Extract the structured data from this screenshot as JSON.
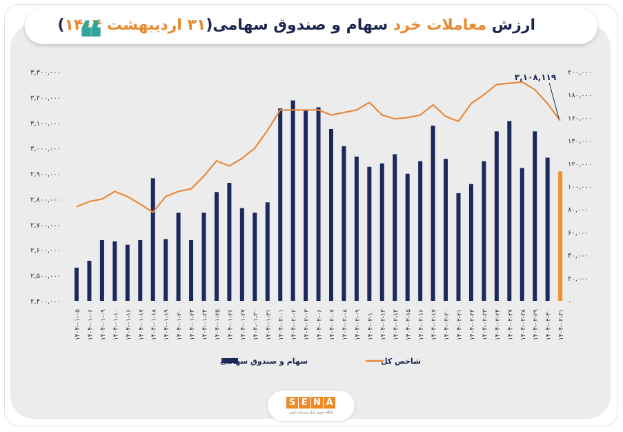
{
  "title": {
    "part1": "ارزش ",
    "part2": "معاملات خرد",
    "part3": " سهام و صندوق سهامی(",
    "part4": "۳۱ اردیبهشت ۱۴۰۴",
    "part5": ")",
    "quote_glyph": "❝"
  },
  "logo": {
    "letters": [
      "S",
      "E",
      "N",
      "A"
    ],
    "subtitle": "پایگاه خبری بازار سرمایه ایران"
  },
  "colors": {
    "bar": "#1b2a5c",
    "bar_last": "#f0922b",
    "line": "#e8893a",
    "navy": "#1b2550",
    "accent": "#f08a24",
    "quote": "#33a59a"
  },
  "chart_data": {
    "type": "bar+line",
    "categories": [
      "۱۴۰۴-۰۱-۰۵",
      "۱۴۰۴-۰۱-۰۶",
      "۱۴۰۴-۰۱-۰۹",
      "۱۴۰۴-۰۱-۱۰",
      "۱۴۰۴-۰۱-۱۶",
      "۱۴۰۴-۰۱-۱۷",
      "۱۴۰۴-۰۱-۱۸",
      "۱۴۰۴-۰۱-۱۹",
      "۱۴۰۴-۰۱-۲۰",
      "۱۴۰۴-۰۱-۲۳",
      "۱۴۰۴-۰۱-۲۴",
      "۱۴۰۴-۰۱-۲۵",
      "۱۴۰۴-۰۱-۲۶",
      "۱۴۰۴-۰۱-۲۷",
      "۱۴۰۴-۰۱-۳۰",
      "۱۴۰۴-۰۱-۳۱",
      "۱۴۰۴-۰۲-۰۱",
      "۱۴۰۴-۰۲-۰۲",
      "۱۴۰۴-۰۲-۰۳",
      "۱۴۰۴-۰۲-۰۶",
      "۱۴۰۴-۰۲-۰۷",
      "۱۴۰۴-۰۲-۰۸",
      "۱۴۰۴-۰۲-۰۹",
      "۱۴۰۴-۰۲-۱۰",
      "۱۴۰۴-۰۲-۱۳",
      "۱۴۰۴-۰۲-۱۴",
      "۱۴۰۴-۰۲-۱۵",
      "۱۴۰۴-۰۲-۱۶",
      "۱۴۰۴-۰۲-۱۷",
      "۱۴۰۴-۰۲-۲۰",
      "۱۴۰۴-۰۲-۲۱",
      "۱۴۰۴-۰۲-۲۲",
      "۱۴۰۴-۰۲-۲۳",
      "۱۴۰۴-۰۲-۲۴",
      "۱۴۰۴-۰۲-۲۷",
      "۱۴۰۴-۰۲-۲۸",
      "۱۴۰۴-۰۲-۲۹",
      "۱۴۰۴-۰۲-۳۰",
      "۱۴۰۴-۰۲-۳۱"
    ],
    "series": [
      {
        "name": "سهام و صندوق سهامی",
        "type": "bar",
        "axis": "right",
        "values": [
          29000,
          35000,
          53000,
          52000,
          49000,
          53000,
          107000,
          54000,
          77000,
          53000,
          77000,
          95000,
          103000,
          81000,
          77000,
          86000,
          168000,
          175000,
          166000,
          169000,
          150000,
          135000,
          126000,
          117000,
          120000,
          128000,
          111000,
          122000,
          153000,
          124000,
          94000,
          102000,
          122000,
          148000,
          157000,
          116000,
          148000,
          125000,
          113000
        ]
      },
      {
        "name": "شاخص کل",
        "type": "line",
        "axis": "left",
        "values": [
          2.77,
          2.79,
          2.8,
          2.83,
          2.81,
          2.78,
          2.748,
          2.81,
          2.83,
          2.84,
          2.89,
          2.95,
          2.93,
          2.96,
          3.0,
          3.07,
          3.15,
          3.15,
          3.15,
          3.15,
          3.13,
          3.14,
          3.15,
          3.18,
          3.13,
          3.115,
          3.12,
          3.13,
          3.17,
          3.125,
          3.105,
          3.175,
          3.21,
          3.25,
          3.255,
          3.26,
          3.23,
          3.175,
          3.1081
        ]
      }
    ],
    "last_label": "۳,۱۰۸,۱۱۹",
    "left_axis": {
      "ylim": [
        2400000,
        3300000
      ],
      "ticks": [
        "۳,۳۰۰,۰۰۰",
        "۳,۲۰۰,۰۰۰",
        "۳,۱۰۰,۰۰۰",
        "۳,۰۰۰,۰۰۰",
        "۲,۹۰۰,۰۰۰",
        "۲,۸۰۰,۰۰۰",
        "۲,۷۰۰,۰۰۰",
        "۲,۶۰۰,۰۰۰",
        "۲,۵۰۰,۰۰۰",
        "۲,۴۰۰,۰۰۰"
      ]
    },
    "right_axis": {
      "ylim": [
        0,
        200000
      ],
      "ticks": [
        "۲۰۰,۰۰۰",
        "۱۸۰,۰۰۰",
        "۱۶۰,۰۰۰",
        "۱۴۰,۰۰۰",
        "۱۲۰,۰۰۰",
        "۱۰۰,۰۰۰",
        "۸۰,۰۰۰",
        "۶۰,۰۰۰",
        "۴۰,۰۰۰",
        "۲۰,۰۰۰",
        "۰"
      ]
    },
    "legend": {
      "bar_label": "سهام و صندوق سهامی",
      "line_label": "شاخص کل",
      "placement": "bottom"
    }
  }
}
